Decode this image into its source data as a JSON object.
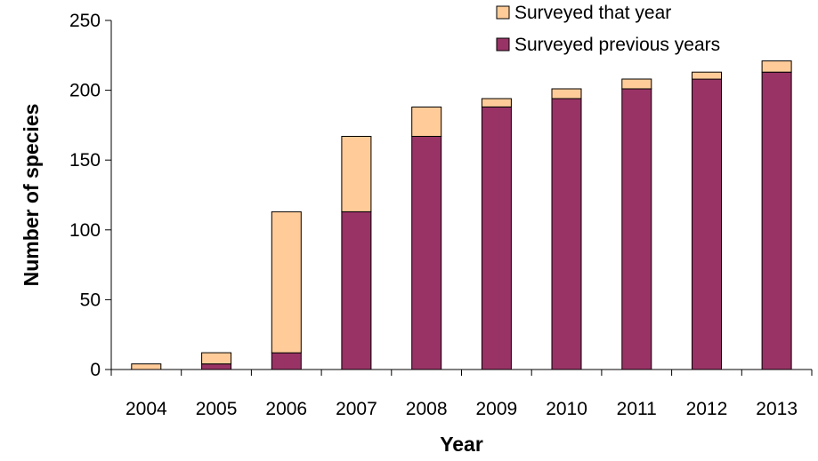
{
  "chart_data": {
    "type": "bar",
    "stacked": true,
    "title": "",
    "xlabel": "Year",
    "ylabel": "Number of species",
    "ylim": [
      0,
      250
    ],
    "yticks": [
      "0",
      "50",
      "100",
      "150",
      "200",
      "250"
    ],
    "categories": [
      "2004",
      "2005",
      "2006",
      "2007",
      "2008",
      "2009",
      "2010",
      "2011",
      "2012",
      "2013"
    ],
    "series": [
      {
        "name": "Surveyed previous years",
        "color": "#993366",
        "values": [
          0,
          4,
          12,
          113,
          167,
          188,
          194,
          201,
          208,
          213
        ]
      },
      {
        "name": "Surveyed that year",
        "color": "#FFCC99",
        "values": [
          4,
          8,
          101,
          54,
          21,
          6,
          7,
          7,
          5,
          8
        ]
      }
    ],
    "legend": {
      "placement": "top-right",
      "order": [
        "Surveyed that year",
        "Surveyed previous years"
      ]
    },
    "grid": false
  }
}
